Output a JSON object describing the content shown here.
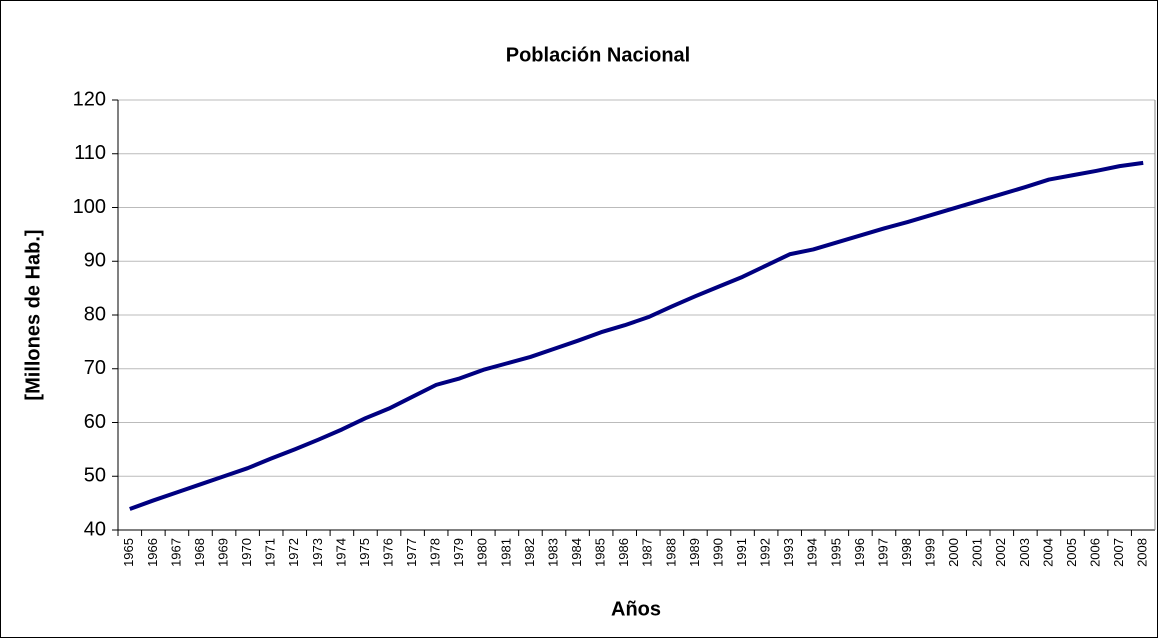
{
  "chart_data": {
    "type": "line",
    "title": "Población Nacional",
    "x_label": "Años",
    "y_label": "[Millones de Hab.]",
    "categories": [
      "1965",
      "1966",
      "1967",
      "1968",
      "1969",
      "1970",
      "1971",
      "1972",
      "1973",
      "1974",
      "1975",
      "1976",
      "1977",
      "1978",
      "1979",
      "1980",
      "1981",
      "1982",
      "1983",
      "1984",
      "1985",
      "1986",
      "1987",
      "1988",
      "1989",
      "1990",
      "1991",
      "1992",
      "1993",
      "1994",
      "1995",
      "1996",
      "1997",
      "1998",
      "1999",
      "2000",
      "2001",
      "2002",
      "2003",
      "2004",
      "2005",
      "2006",
      "2007",
      "2008"
    ],
    "series": [
      {
        "name": "Población",
        "color": "#000080",
        "values": [
          43.9,
          45.5,
          47,
          48.5,
          50,
          51.5,
          53.3,
          55,
          56.8,
          58.7,
          60.8,
          62.6,
          64.8,
          67,
          68.2,
          69.8,
          71,
          72.2,
          73.7,
          75.2,
          76.8,
          78.1,
          79.6,
          81.6,
          83.5,
          85.3,
          87.1,
          89.2,
          91.3,
          92.2,
          93.5,
          94.8,
          96.1,
          97.3,
          98.6,
          99.9,
          101.2,
          102.5,
          103.8,
          105.2,
          106,
          106.8,
          107.7,
          108.3
        ]
      }
    ],
    "ylim": [
      40,
      120
    ],
    "yticks": [
      40,
      50,
      60,
      70,
      80,
      90,
      100,
      110,
      120
    ],
    "grid": true
  }
}
